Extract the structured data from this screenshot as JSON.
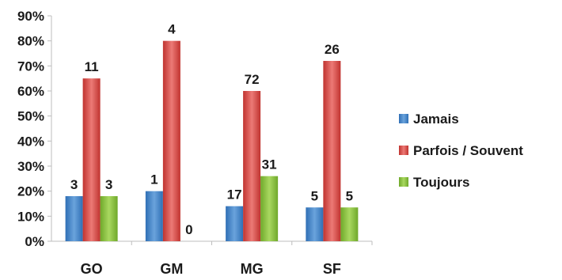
{
  "chart_data": {
    "type": "bar",
    "categories": [
      "GO",
      "GM",
      "MG",
      "SF"
    ],
    "y_ticks": [
      "0%",
      "10%",
      "20%",
      "30%",
      "40%",
      "50%",
      "60%",
      "70%",
      "80%",
      "90%"
    ],
    "ylim": [
      0,
      90
    ],
    "grid": false,
    "legend_position": "right",
    "series": [
      {
        "name": "Jamais",
        "color": "#4a86c8",
        "values": [
          18,
          20,
          14,
          13.5
        ],
        "data_labels": [
          "3",
          "1",
          "17",
          "5"
        ]
      },
      {
        "name": "Parfois / Souvent",
        "color": "#d9504c",
        "values": [
          65,
          80,
          60,
          72
        ],
        "data_labels": [
          "11",
          "4",
          "72",
          "26"
        ]
      },
      {
        "name": "Toujours",
        "color": "#8cc43f",
        "values": [
          18,
          0,
          26,
          13.5
        ],
        "data_labels": [
          "3",
          "0",
          "31",
          "5"
        ]
      }
    ]
  }
}
